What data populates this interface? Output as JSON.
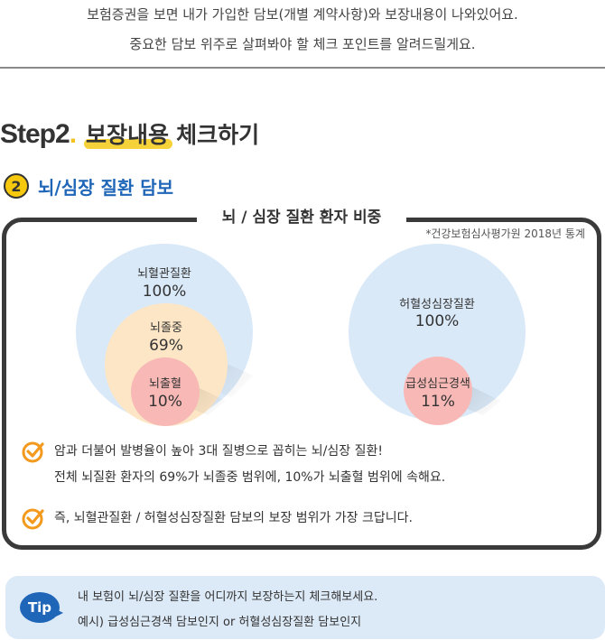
{
  "intro": {
    "line1": "보험증권을 보면 내가 가입한 담보(개별 계약사항)와 보장내용이 나와있어요.",
    "line2": "중요한 담보 위주로 살펴봐야 할 체크 포인트를 알려드릴게요."
  },
  "step": {
    "number": "Step2",
    "dot": ".",
    "highlight": "보장내용",
    "rest": "체크하기"
  },
  "section": {
    "number": "2",
    "title": "뇌/심장 질환 담보"
  },
  "box": {
    "title": "뇌 / 심장 질환 환자 비중",
    "source": "*건강보험심사평가원 2018년 통계",
    "brain": {
      "outer": {
        "label": "뇌혈관질환",
        "value": "100%"
      },
      "middle": {
        "label": "뇌졸중",
        "value": "69%"
      },
      "inner": {
        "label": "뇌출혈",
        "value": "10%"
      }
    },
    "heart": {
      "outer": {
        "label": "허혈성심장질환",
        "value": "100%"
      },
      "inner": {
        "label": "급성심근경색",
        "value": "11%"
      }
    },
    "checks": [
      {
        "line1": "암과 더불어 발병율이 높아 3대 질병으로 꼽히는 뇌/심장 질환!",
        "line2": "전체 뇌질환 환자의 69%가 뇌졸중 범위에, 10%가 뇌출혈 범위에 속해요."
      },
      {
        "line1": "즉, 뇌혈관질환 / 허혈성심장질환 담보의 보장 범위가 가장 크답니다."
      }
    ]
  },
  "tip": {
    "badge": "Tip",
    "line1": "내 보험이 뇌/심장 질환을 어디까지 보장하는지 체크해보세요.",
    "line2": "예시) 급성심근경색 담보인지 or 허혈성심장질환 담보인지"
  },
  "colors": {
    "accent_blue": "#1f66b8",
    "accent_yellow": "#f6c90e",
    "circle_blue": "#dae9f8",
    "circle_peach": "#fde6c6",
    "circle_pink": "#f8b9b6"
  }
}
